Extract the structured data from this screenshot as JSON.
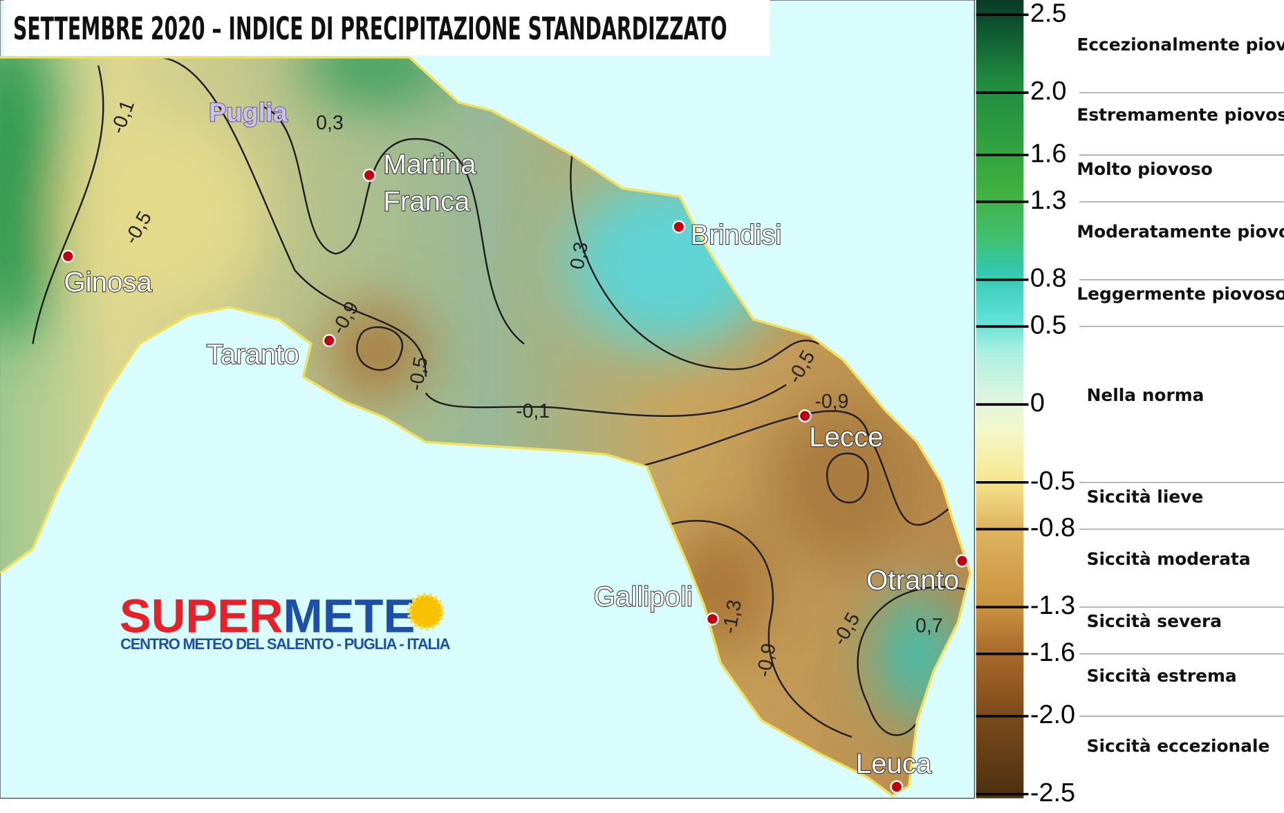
{
  "title": "SETTEMBRE 2020 – INDICE DI PRECIPITAZIONE STANDARDIZZATO",
  "region_label": "Puglia",
  "cities": [
    {
      "name": [
        "Martina",
        "Franca"
      ]
    },
    {
      "name": [
        "Brindisi"
      ]
    },
    {
      "name": [
        "Ginosa"
      ]
    },
    {
      "name": [
        "Taranto"
      ]
    },
    {
      "name": [
        "Lecce"
      ]
    },
    {
      "name": [
        "Gallipoli"
      ]
    },
    {
      "name": [
        "Otranto"
      ]
    },
    {
      "name": [
        "Leuca"
      ]
    }
  ],
  "contour_labels": [
    "-0,1",
    "0,3",
    "-0,5",
    "-0,9",
    "-0,5",
    "0,3",
    "-0,1",
    "-0,5",
    "-0,9",
    "-1,3",
    "-0,9",
    "-0,5",
    "0,7"
  ],
  "logo": {
    "name_red": "SUPER",
    "name_blue": "METE",
    "subtitle": "CENTRO METEO DEL SALENTO - PUGLIA - ITALIA"
  },
  "legend": {
    "lim": [
      -2.5,
      2.5
    ],
    "ticks": [
      2.5,
      {
        "value": 2,
        "label": "2.0"
      },
      1.6,
      1.3,
      0.8,
      0.5,
      0,
      -0.5,
      -0.8,
      -1.3,
      -1.6,
      {
        "value": -2,
        "label": "-2.0"
      },
      -2.5
    ],
    "classes": [
      {
        "label": "Eccezionalmente piovoso",
        "from": 2.0,
        "to": 2.5
      },
      {
        "label": "Estremamente piovoso",
        "from": 1.6,
        "to": 2.0
      },
      {
        "label": "Molto piovoso",
        "from": 1.3,
        "to": 1.6
      },
      {
        "label": "Moderatamente piovoso",
        "from": 0.8,
        "to": 1.3
      },
      {
        "label": "Leggermente piovoso",
        "from": 0.5,
        "to": 0.8
      },
      {
        "label": "Nella norma",
        "from": -0.5,
        "to": 0.5
      },
      {
        "label": "Siccità lieve",
        "from": -0.8,
        "to": -0.5
      },
      {
        "label": "Siccità moderata",
        "from": -1.3,
        "to": -0.8
      },
      {
        "label": "Siccità severa",
        "from": -1.6,
        "to": -1.3
      },
      {
        "label": "Siccità estrema",
        "from": -2.0,
        "to": -1.6
      },
      {
        "label": "Siccità eccezionale",
        "from": -2.5,
        "to": -2.0
      }
    ]
  }
}
